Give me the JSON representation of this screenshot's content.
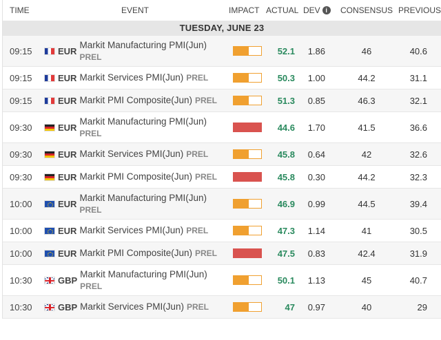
{
  "header": {
    "time": "TIME",
    "event": "EVENT",
    "impact": "IMPACT",
    "actual": "ACTUAL",
    "dev": "DEV",
    "info_icon": "info-icon",
    "consensus": "CONSENSUS",
    "previous": "PREVIOUS"
  },
  "date_label": "TUESDAY, JUNE 23",
  "colors": {
    "impact_medium": "#f0a030",
    "impact_high": "#d9534f",
    "actual_positive": "#2a8a5e"
  },
  "rows": [
    {
      "time": "09:15",
      "flag": "france-flag-icon",
      "currency": "EUR",
      "title": "Markit Manufacturing PMI(Jun)",
      "tag": "PREL",
      "impact": "medium",
      "impact_level": 0.55,
      "actual": "52.1",
      "dev": "1.86",
      "consensus": "46",
      "previous": "40.6"
    },
    {
      "time": "09:15",
      "flag": "france-flag-icon",
      "currency": "EUR",
      "title": "Markit Services PMI(Jun)",
      "tag": "PREL",
      "impact": "medium",
      "impact_level": 0.55,
      "actual": "50.3",
      "dev": "1.00",
      "consensus": "44.2",
      "previous": "31.1"
    },
    {
      "time": "09:15",
      "flag": "france-flag-icon",
      "currency": "EUR",
      "title": "Markit PMI Composite(Jun)",
      "tag": "PREL",
      "impact": "medium",
      "impact_level": 0.55,
      "actual": "51.3",
      "dev": "0.85",
      "consensus": "46.3",
      "previous": "32.1"
    },
    {
      "time": "09:30",
      "flag": "germany-flag-icon",
      "currency": "EUR",
      "title": "Markit Manufacturing PMI(Jun)",
      "tag": "PREL",
      "impact": "high",
      "impact_level": 1.0,
      "actual": "44.6",
      "dev": "1.70",
      "consensus": "41.5",
      "previous": "36.6"
    },
    {
      "time": "09:30",
      "flag": "germany-flag-icon",
      "currency": "EUR",
      "title": "Markit Services PMI(Jun)",
      "tag": "PREL",
      "impact": "medium",
      "impact_level": 0.55,
      "actual": "45.8",
      "dev": "0.64",
      "consensus": "42",
      "previous": "32.6"
    },
    {
      "time": "09:30",
      "flag": "germany-flag-icon",
      "currency": "EUR",
      "title": "Markit PMI Composite(Jun)",
      "tag": "PREL",
      "impact": "high",
      "impact_level": 1.0,
      "actual": "45.8",
      "dev": "0.30",
      "consensus": "44.2",
      "previous": "32.3"
    },
    {
      "time": "10:00",
      "flag": "eu-flag-icon",
      "currency": "EUR",
      "title": "Markit Manufacturing PMI(Jun)",
      "tag": "PREL",
      "impact": "medium",
      "impact_level": 0.55,
      "actual": "46.9",
      "dev": "0.99",
      "consensus": "44.5",
      "previous": "39.4"
    },
    {
      "time": "10:00",
      "flag": "eu-flag-icon",
      "currency": "EUR",
      "title": "Markit Services PMI(Jun)",
      "tag": "PREL",
      "impact": "medium",
      "impact_level": 0.55,
      "actual": "47.3",
      "dev": "1.14",
      "consensus": "41",
      "previous": "30.5"
    },
    {
      "time": "10:00",
      "flag": "eu-flag-icon",
      "currency": "EUR",
      "title": "Markit PMI Composite(Jun)",
      "tag": "PREL",
      "impact": "high",
      "impact_level": 1.0,
      "actual": "47.5",
      "dev": "0.83",
      "consensus": "42.4",
      "previous": "31.9"
    },
    {
      "time": "10:30",
      "flag": "uk-flag-icon",
      "currency": "GBP",
      "title": "Markit Manufacturing PMI(Jun)",
      "tag": "PREL",
      "impact": "medium",
      "impact_level": 0.55,
      "actual": "50.1",
      "dev": "1.13",
      "consensus": "45",
      "previous": "40.7"
    },
    {
      "time": "10:30",
      "flag": "uk-flag-icon",
      "currency": "GBP",
      "title": "Markit Services PMI(Jun)",
      "tag": "PREL",
      "impact": "medium",
      "impact_level": 0.55,
      "actual": "47",
      "dev": "0.97",
      "consensus": "40",
      "previous": "29"
    }
  ]
}
